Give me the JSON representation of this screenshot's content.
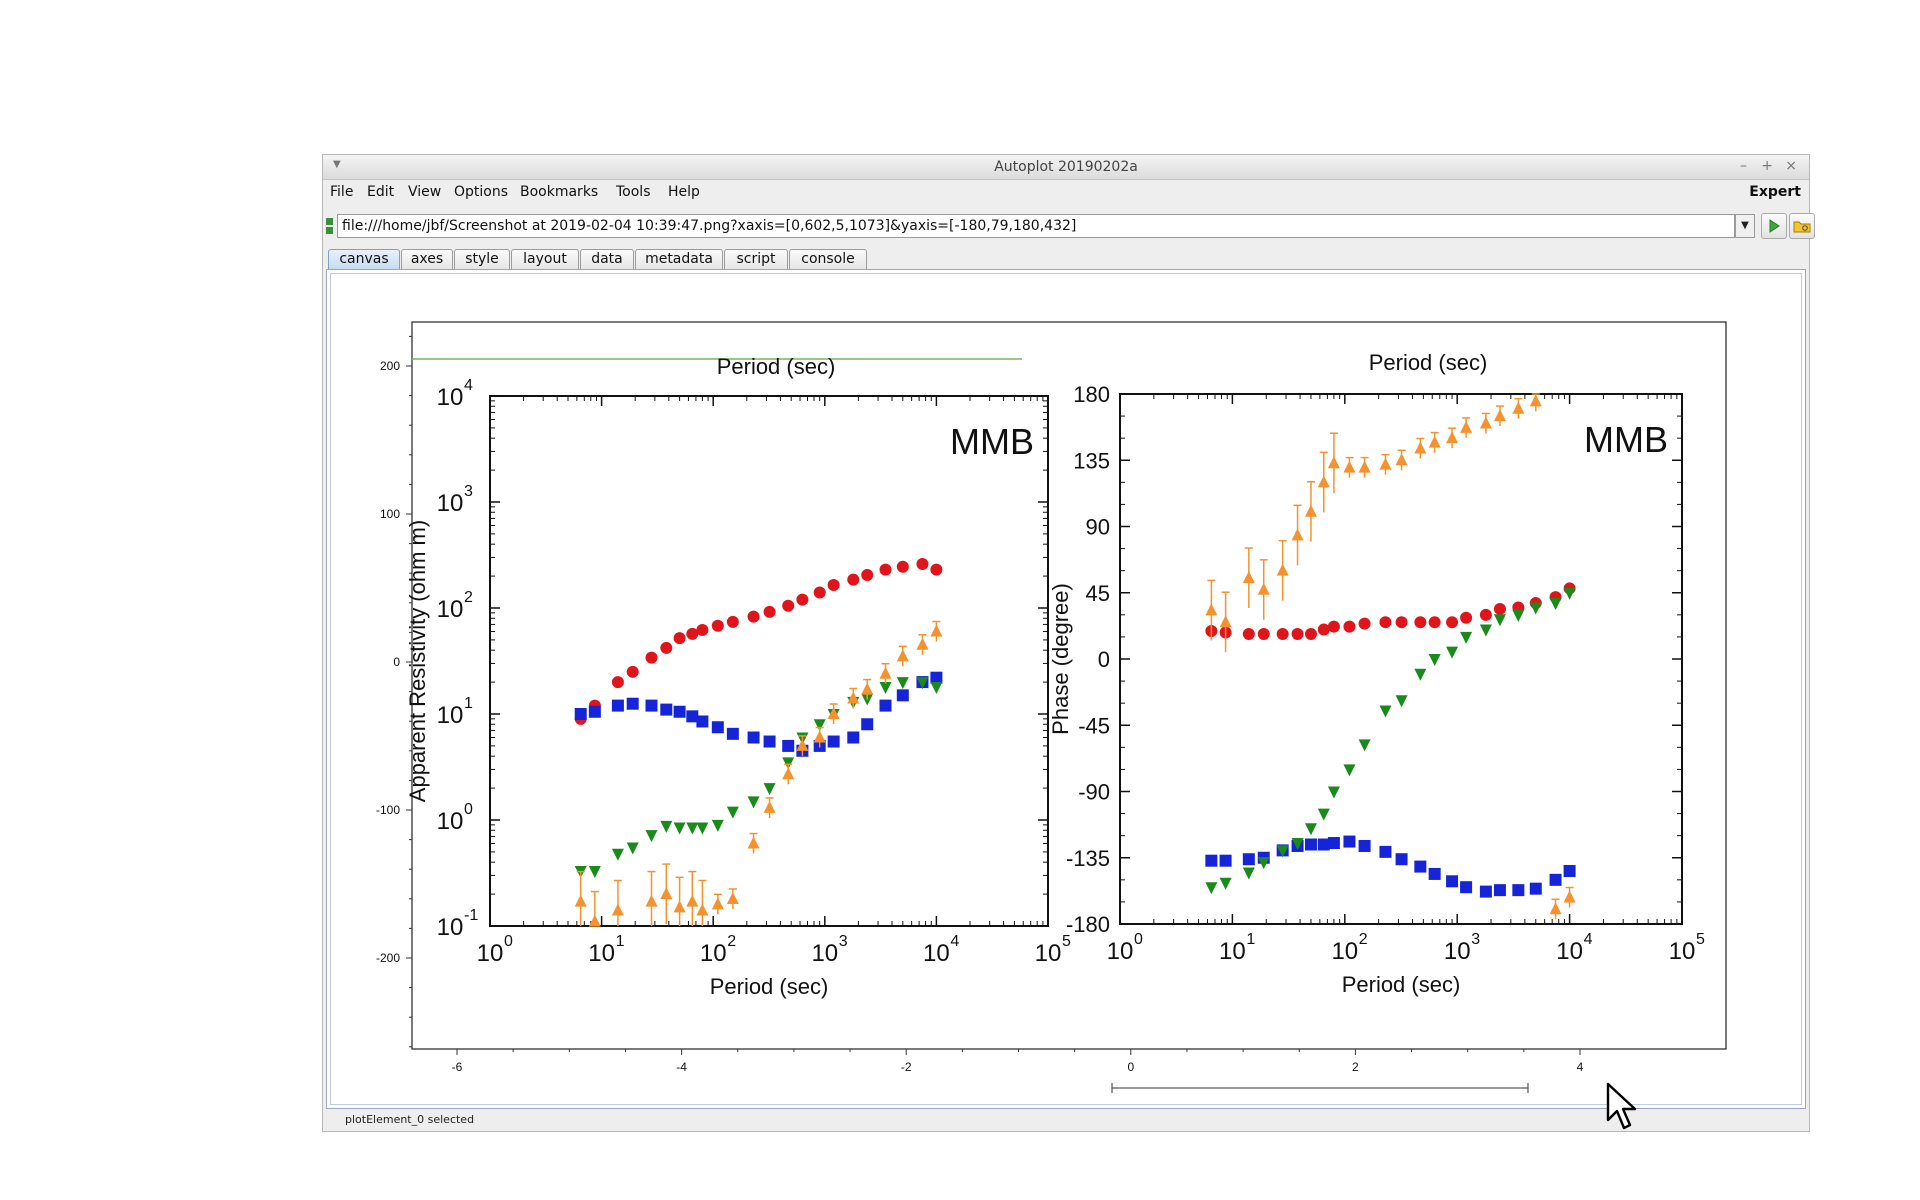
{
  "window": {
    "title": "Autoplot 20190202a",
    "controls": [
      "–",
      "+",
      "×"
    ]
  },
  "menubar": {
    "items": [
      "File",
      "Edit",
      "View",
      "Options",
      "Bookmarks",
      "Tools",
      "Help"
    ],
    "expert_label": "Expert"
  },
  "urlbar": {
    "value": "file:///home/jbf/Screenshot at 2019-02-04 10:39:47.png?xaxis=[0,602,5,1073]&yaxis=[-180,79,180,432]"
  },
  "tabs": [
    "canvas",
    "axes",
    "style",
    "layout",
    "data",
    "metadata",
    "script",
    "console"
  ],
  "status": {
    "text": "plotElement_0 selected"
  },
  "plot": {
    "outer_x_ticks": [
      "-6",
      "-4",
      "-2",
      "0",
      "2",
      "4"
    ],
    "outer_y_ticks": [
      "200",
      "100",
      "0",
      "-100",
      "-200"
    ],
    "image_top_label": "Period (sec)",
    "left_panel": {
      "station": "MMB",
      "ylabel": "Apparent Resistivity (ohm m)",
      "xlabel": "Period (sec)",
      "y_tick_bases": [
        "10",
        "10",
        "10",
        "10",
        "10",
        "10"
      ],
      "y_tick_exps": [
        "4",
        "3",
        "2",
        "1",
        "0",
        "-1"
      ],
      "x_tick_bases": [
        "10",
        "10",
        "10",
        "10",
        "10",
        "10"
      ],
      "x_tick_exps": [
        "0",
        "1",
        "2",
        "3",
        "4",
        "5"
      ]
    },
    "right_panel": {
      "station": "MMB",
      "ylabel": "Phase (degree)",
      "xlabel": "Period (sec)",
      "top_label": "Period (sec)",
      "y_ticks": [
        "180",
        "135",
        "90",
        "45",
        "0",
        "-45",
        "-90",
        "-135",
        "-180"
      ],
      "x_tick_bases": [
        "10",
        "10",
        "10",
        "10",
        "10",
        "10"
      ],
      "x_tick_exps": [
        "0",
        "1",
        "2",
        "3",
        "4",
        "5"
      ]
    },
    "colors": {
      "red": "#e0151b",
      "blue": "#1524d6",
      "green": "#1a8a1a",
      "orange": "#f5922e",
      "axis": "#222222",
      "guide": "#7ab35a"
    }
  },
  "chart_data": [
    {
      "type": "scatter",
      "title": "MMB",
      "xlabel": "Period (sec)",
      "ylabel": "Apparent Resistivity (ohm m)",
      "x_scale": "log",
      "y_scale": "log",
      "xlim": [
        1,
        100000
      ],
      "ylim": [
        0.1,
        10000
      ],
      "series": [
        {
          "color": "red",
          "marker": "circle",
          "x": [
            6.5,
            8.7,
            14,
            19,
            28,
            38,
            50,
            65,
            80,
            110,
            150,
            230,
            320,
            470,
            630,
            900,
            1200,
            1800,
            2400,
            3500,
            5000,
            7500,
            10000
          ],
          "y": [
            9,
            12,
            20,
            25,
            34,
            42,
            52,
            57,
            62,
            68,
            74,
            83,
            92,
            105,
            120,
            140,
            165,
            185,
            205,
            230,
            245,
            260,
            230
          ]
        },
        {
          "color": "blue",
          "marker": "square",
          "x": [
            6.5,
            8.7,
            14,
            19,
            28,
            38,
            50,
            65,
            80,
            110,
            150,
            230,
            320,
            470,
            630,
            900,
            1200,
            1800,
            2400,
            3500,
            5000,
            7500,
            10000
          ],
          "y": [
            10,
            10.5,
            12,
            12.5,
            12,
            11,
            10.5,
            9.5,
            8.5,
            7.5,
            6.5,
            6,
            5.5,
            5,
            4.5,
            5,
            5.5,
            6,
            8,
            12,
            15,
            20,
            22
          ]
        },
        {
          "color": "green",
          "marker": "triangle-down",
          "x": [
            6.5,
            8.7,
            14,
            19,
            28,
            38,
            50,
            65,
            80,
            110,
            150,
            230,
            320,
            470,
            630,
            900,
            1200,
            1800,
            2400,
            3500,
            5000,
            7500,
            10000
          ],
          "y": [
            0.33,
            0.33,
            0.48,
            0.55,
            0.72,
            0.88,
            0.85,
            0.85,
            0.85,
            0.9,
            1.2,
            1.5,
            2,
            3.5,
            6,
            8,
            10,
            13,
            14,
            18,
            20,
            20,
            18
          ]
        },
        {
          "color": "orange",
          "marker": "triangle-up",
          "x": [
            6.5,
            8.7,
            14,
            19,
            28,
            38,
            50,
            65,
            80,
            110,
            150,
            230,
            320,
            470,
            630,
            900,
            1200,
            1800,
            2400,
            3500,
            5000,
            7500,
            10000
          ],
          "y": [
            0.17,
            0.11,
            0.14,
            0.095,
            0.17,
            0.2,
            0.15,
            0.17,
            0.14,
            0.16,
            0.18,
            0.6,
            1.3,
            2.7,
            5,
            6,
            10,
            14,
            17,
            24,
            35,
            45,
            60
          ]
        }
      ]
    },
    {
      "type": "scatter",
      "title": "MMB",
      "xlabel": "Period (sec)",
      "ylabel": "Phase (degree)",
      "x_scale": "log",
      "y_scale": "linear",
      "xlim": [
        1,
        100000
      ],
      "ylim": [
        -180,
        180
      ],
      "series": [
        {
          "color": "red",
          "marker": "circle",
          "x": [
            6.5,
            8.7,
            14,
            19,
            28,
            38,
            50,
            65,
            80,
            110,
            150,
            230,
            320,
            470,
            630,
            900,
            1200,
            1800,
            2400,
            3500,
            5000,
            7500,
            10000
          ],
          "y": [
            19,
            18,
            17,
            17,
            17,
            17,
            17,
            20,
            22,
            22,
            24,
            25,
            25,
            25,
            25,
            25,
            28,
            30,
            34,
            35,
            38,
            42,
            48
          ]
        },
        {
          "color": "blue",
          "marker": "square",
          "x": [
            6.5,
            8.7,
            14,
            19,
            28,
            38,
            50,
            65,
            80,
            110,
            150,
            230,
            320,
            470,
            630,
            900,
            1200,
            1800,
            2400,
            3500,
            5000,
            7500,
            10000
          ],
          "y": [
            -137,
            -137,
            -136,
            -135,
            -130,
            -127,
            -126,
            -126,
            -125,
            -124,
            -127,
            -131,
            -136,
            -141,
            -146,
            -151,
            -155,
            -158,
            -157,
            -157,
            -156,
            -150,
            -144
          ]
        },
        {
          "color": "green",
          "marker": "triangle-down",
          "x": [
            6.5,
            8.7,
            14,
            19,
            28,
            38,
            50,
            65,
            80,
            110,
            150,
            230,
            320,
            470,
            630,
            900,
            1200,
            1800,
            2400,
            3500,
            5000,
            7500,
            10000
          ],
          "y": [
            -155,
            -152,
            -145,
            -138,
            -130,
            -125,
            -115,
            -105,
            -90,
            -75,
            -58,
            -35,
            -28,
            -10,
            0,
            5,
            15,
            20,
            27,
            30,
            35,
            38,
            45
          ]
        },
        {
          "color": "orange",
          "marker": "triangle-up",
          "x": [
            6.5,
            8.7,
            14,
            19,
            28,
            38,
            50,
            65,
            80,
            110,
            150,
            230,
            320,
            470,
            630,
            900,
            1200,
            1800,
            2400,
            3500,
            5000,
            7500,
            10000
          ],
          "y": [
            33,
            25,
            55,
            47,
            60,
            84,
            100,
            120,
            133,
            130,
            130,
            132,
            135,
            143,
            147,
            150,
            157,
            160,
            165,
            170,
            175,
            -170,
            -162
          ]
        }
      ]
    }
  ]
}
